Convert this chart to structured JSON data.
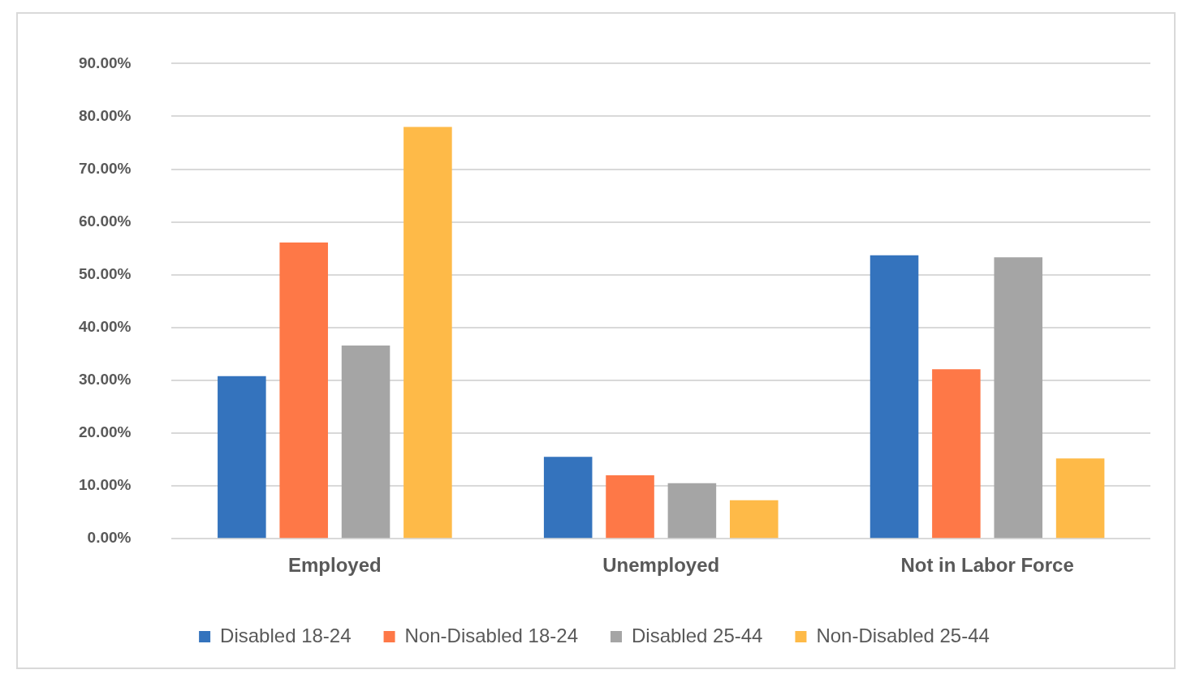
{
  "chart_data": {
    "type": "bar",
    "categories": [
      "Employed",
      "Unemployed",
      "Not in Labor Force"
    ],
    "series": [
      {
        "name": "Disabled 18-24",
        "color": "#3473bd",
        "values": [
          30.8,
          15.5,
          53.7
        ]
      },
      {
        "name": "Non-Disabled 18-24",
        "color": "#fe7847",
        "values": [
          56.1,
          12.0,
          32.1
        ]
      },
      {
        "name": "Disabled 25-44",
        "color": "#a5a5a5",
        "values": [
          36.6,
          10.5,
          53.3
        ]
      },
      {
        "name": "Non-Disabled 25-44",
        "color": "#feba48",
        "values": [
          78.0,
          7.3,
          15.2
        ]
      }
    ],
    "ylim": [
      0,
      90
    ],
    "yticks": [
      {
        "value": 0,
        "label": "0.00%"
      },
      {
        "value": 10,
        "label": "10.00%"
      },
      {
        "value": 20,
        "label": "20.00%"
      },
      {
        "value": 30,
        "label": "30.00%"
      },
      {
        "value": 40,
        "label": "40.00%"
      },
      {
        "value": 50,
        "label": "50.00%"
      },
      {
        "value": 60,
        "label": "60.00%"
      },
      {
        "value": 70,
        "label": "70.00%"
      },
      {
        "value": 80,
        "label": "80.00%"
      },
      {
        "value": 90,
        "label": "90.00%"
      }
    ],
    "grid": "y",
    "legend": "bottom"
  }
}
